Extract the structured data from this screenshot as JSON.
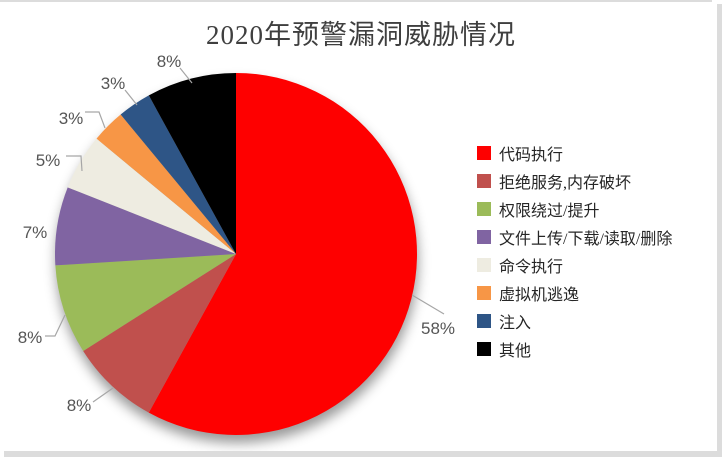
{
  "chart_data": {
    "type": "pie",
    "title": "2020年预警漏洞威胁情况",
    "categories": [
      "代码执行",
      "拒绝服务,内存破坏",
      "权限绕过/提升",
      "文件上传/下载/读取/删除",
      "命令执行",
      "虚拟机逃逸",
      "注入",
      "其他"
    ],
    "values": [
      58,
      8,
      8,
      7,
      5,
      3,
      3,
      8
    ],
    "labels": [
      "58%",
      "8%",
      "8%",
      "7%",
      "5%",
      "3%",
      "3%",
      "8%"
    ],
    "colors": [
      "#fe0000",
      "#c0504d",
      "#9bbb59",
      "#8064a2",
      "#eeece1",
      "#f79646",
      "#2e5586",
      "#000000"
    ],
    "unit": "%",
    "legend_position": "right",
    "start_angle_deg": 0,
    "direction": "clockwise",
    "title_color": "#3f3f3f",
    "label_color": "#555555",
    "leader_line_color": "#a6a6a6"
  }
}
